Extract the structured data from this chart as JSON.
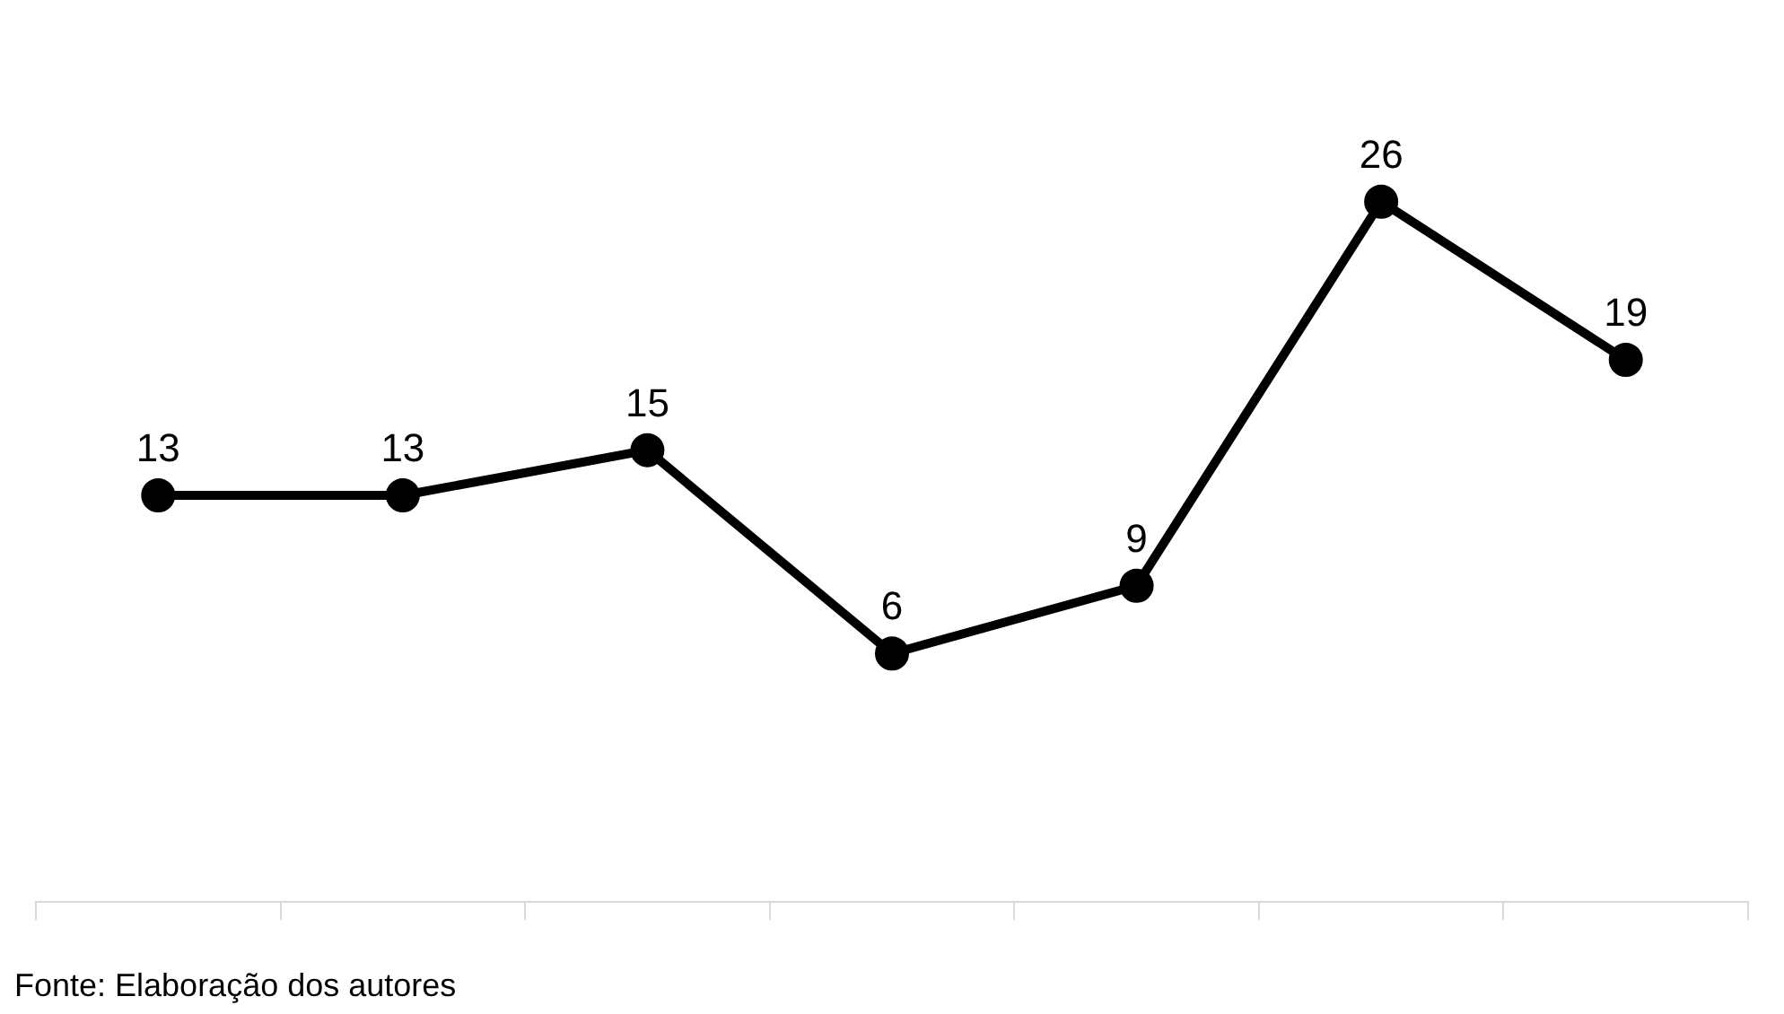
{
  "chart_data": {
    "type": "line",
    "categories": [
      null,
      null,
      null,
      null,
      null,
      null,
      null
    ],
    "values": [
      13,
      13,
      15,
      6,
      9,
      26,
      19
    ],
    "color": "#000000",
    "marker": "circle",
    "line_style": "solid",
    "data_labels": true,
    "grid": false,
    "annotations": [
      "Fonte: Elaboração dos autores"
    ]
  }
}
